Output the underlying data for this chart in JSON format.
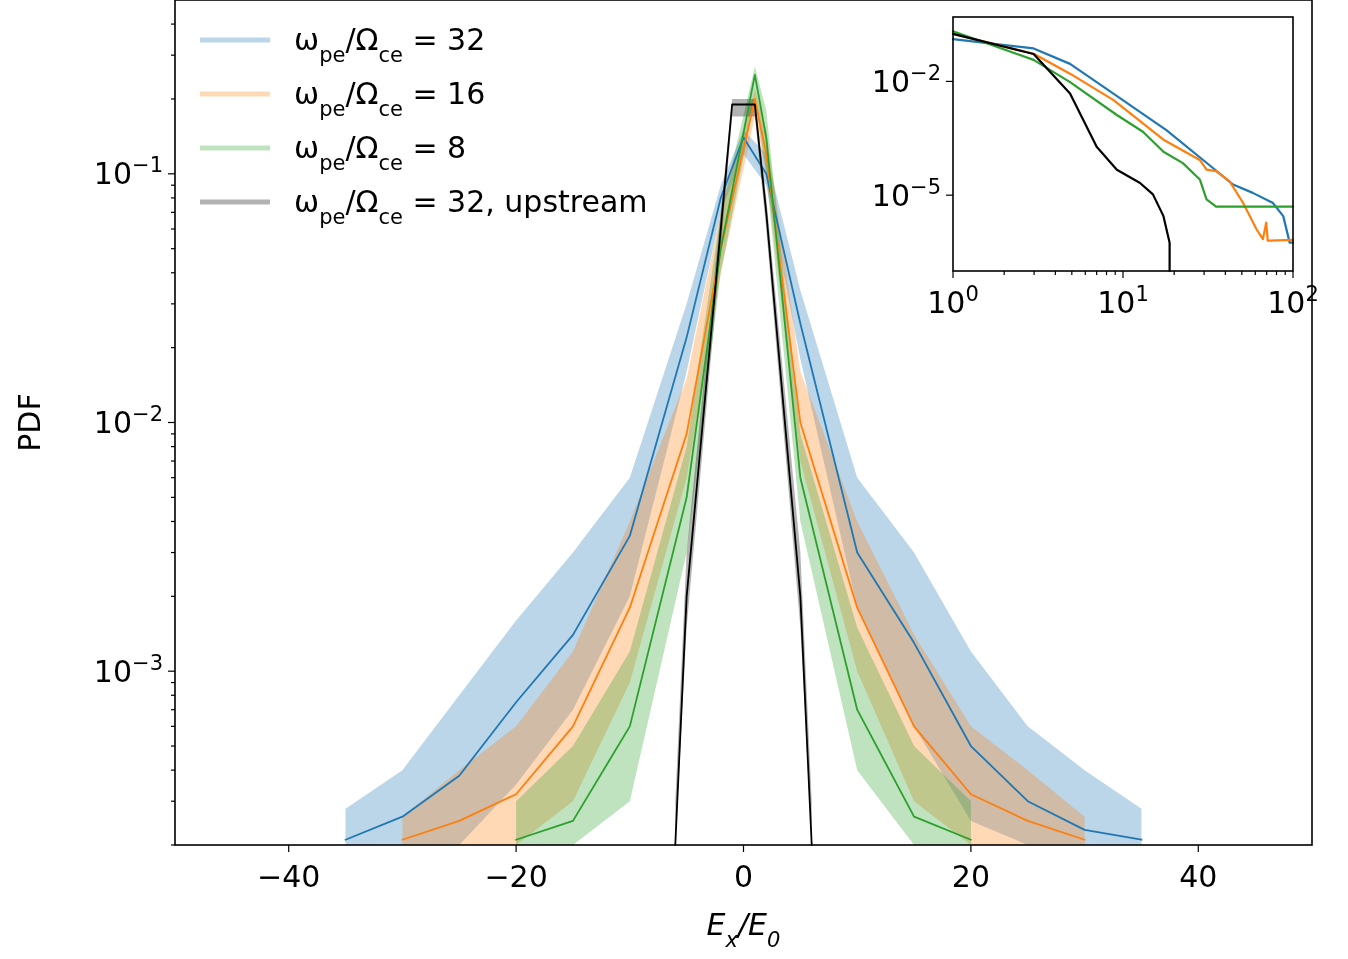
{
  "chart_data": [
    {
      "type": "line",
      "xlabel": "E$_{x}$/E$_{0}$",
      "ylabel": "PDF",
      "log": "y",
      "legend": "top left",
      "xlim": [
        -50,
        50
      ],
      "ylim": [
        0.0002,
        0.5
      ],
      "xticks": [
        {
          "value": -40,
          "label": "−40"
        },
        {
          "value": -20,
          "label": "−20"
        },
        {
          "value": 0,
          "label": "0"
        },
        {
          "value": 20,
          "label": "20"
        },
        {
          "value": 40,
          "label": "40"
        }
      ],
      "yticks": [
        {
          "value": 0.0002,
          "label": null
        },
        {
          "value": 0.0003,
          "label": null
        },
        {
          "value": 0.0004,
          "label": null
        },
        {
          "value": 0.0005,
          "label": null
        },
        {
          "value": 0.0006,
          "label": null
        },
        {
          "value": 0.0007,
          "label": null
        },
        {
          "value": 0.0008,
          "label": null
        },
        {
          "value": 0.0009,
          "label": null
        },
        {
          "value": 0.001,
          "label": "10$^{−3}$"
        },
        {
          "value": 0.002,
          "label": null
        },
        {
          "value": 0.003,
          "label": null
        },
        {
          "value": 0.004,
          "label": null
        },
        {
          "value": 0.005,
          "label": null
        },
        {
          "value": 0.006,
          "label": null
        },
        {
          "value": 0.007,
          "label": null
        },
        {
          "value": 0.008,
          "label": null
        },
        {
          "value": 0.009,
          "label": null
        },
        {
          "value": 0.01,
          "label": "10$^{−2}$"
        },
        {
          "value": 0.02,
          "label": null
        },
        {
          "value": 0.03,
          "label": null
        },
        {
          "value": 0.04,
          "label": null
        },
        {
          "value": 0.05,
          "label": null
        },
        {
          "value": 0.06,
          "label": null
        },
        {
          "value": 0.07,
          "label": null
        },
        {
          "value": 0.08,
          "label": null
        },
        {
          "value": 0.09,
          "label": null
        },
        {
          "value": 0.1,
          "label": "10$^{−1}$"
        },
        {
          "value": 0.2,
          "label": null
        },
        {
          "value": 0.3,
          "label": null
        },
        {
          "value": 0.4,
          "label": null
        }
      ],
      "series": [
        {
          "name": "ω$_{pe}$/Ω$_{ce}$ = 32",
          "color": "#1f77b4",
          "x": [
            -35,
            -30,
            -25,
            -20,
            -15,
            -10,
            -5,
            -2,
            0,
            2,
            5,
            10,
            15,
            20,
            25,
            30,
            35
          ],
          "values": [
            0.00021,
            0.00026,
            0.00038,
            0.00075,
            0.0014,
            0.0035,
            0.022,
            0.08,
            0.14,
            0.1,
            0.025,
            0.003,
            0.0013,
            0.0005,
            0.0003,
            0.00023,
            0.00021
          ],
          "lower": [
            0.0002,
            0.0002,
            0.0002,
            0.00035,
            0.0007,
            0.002,
            0.016,
            0.07,
            0.12,
            0.09,
            0.018,
            0.0018,
            0.0006,
            0.00025,
            0.0002,
            0.0002,
            0.0002
          ],
          "upper": [
            0.00028,
            0.0004,
            0.0008,
            0.0016,
            0.003,
            0.006,
            0.03,
            0.09,
            0.15,
            0.12,
            0.034,
            0.006,
            0.003,
            0.0012,
            0.0006,
            0.0004,
            0.00028
          ]
        },
        {
          "name": "ω$_{pe}$/Ω$_{ce}$ = 16",
          "color": "#ff7f0e",
          "x": [
            -30,
            -25,
            -20,
            -15,
            -10,
            -5,
            -2,
            1,
            2,
            5,
            10,
            15,
            20,
            25,
            30
          ],
          "values": [
            0.00021,
            0.00025,
            0.00032,
            0.0006,
            0.0018,
            0.009,
            0.05,
            0.2,
            0.12,
            0.01,
            0.0018,
            0.0006,
            0.00032,
            0.00025,
            0.00021
          ],
          "lower": [
            0.0002,
            0.0002,
            0.0002,
            0.0003,
            0.0009,
            0.006,
            0.04,
            0.17,
            0.1,
            0.007,
            0.001,
            0.0003,
            0.0002,
            0.0002,
            0.0002
          ],
          "upper": [
            0.00026,
            0.0004,
            0.0006,
            0.0012,
            0.004,
            0.015,
            0.07,
            0.22,
            0.15,
            0.016,
            0.004,
            0.0014,
            0.0006,
            0.0004,
            0.00026
          ]
        },
        {
          "name": "ω$_{pe}$/Ω$_{ce}$ = 8",
          "color": "#2ca02c",
          "x": [
            -20,
            -15,
            -10,
            -5,
            -2,
            1,
            2,
            5,
            10,
            15,
            20
          ],
          "values": [
            0.00021,
            0.00025,
            0.0006,
            0.005,
            0.05,
            0.25,
            0.14,
            0.006,
            0.0007,
            0.00026,
            0.00021
          ],
          "lower": [
            0.0002,
            0.0002,
            0.0003,
            0.003,
            0.04,
            0.2,
            0.1,
            0.004,
            0.0004,
            0.0002,
            0.0002
          ],
          "upper": [
            0.0003,
            0.0005,
            0.0012,
            0.008,
            0.07,
            0.27,
            0.18,
            0.009,
            0.0015,
            0.0005,
            0.0003
          ]
        },
        {
          "name": "ω$_{pe}$/Ω$_{ce}$ = 32, upstream",
          "color": "#000000",
          "x": [
            -6,
            -5,
            -2,
            -1,
            1,
            2,
            5,
            6
          ],
          "values": [
            0.0002,
            0.002,
            0.06,
            0.19,
            0.19,
            0.07,
            0.002,
            0.0002
          ],
          "lower": [
            0.0002,
            0.0015,
            0.05,
            0.17,
            0.17,
            0.06,
            0.0015,
            0.0002
          ],
          "upper": [
            0.0003,
            0.003,
            0.07,
            0.2,
            0.2,
            0.08,
            0.003,
            0.0003
          ]
        }
      ]
    },
    {
      "type": "line",
      "log": "xy",
      "xlim": [
        1,
        100
      ],
      "ylim": [
        1e-07,
        0.5
      ],
      "xticks": [
        {
          "value": 1,
          "label": "10$^{0}$"
        },
        {
          "value": 2,
          "label": null
        },
        {
          "value": 3,
          "label": null
        },
        {
          "value": 4,
          "label": null
        },
        {
          "value": 5,
          "label": null
        },
        {
          "value": 6,
          "label": null
        },
        {
          "value": 7,
          "label": null
        },
        {
          "value": 8,
          "label": null
        },
        {
          "value": 9,
          "label": null
        },
        {
          "value": 10,
          "label": "10$^{1}$"
        },
        {
          "value": 20,
          "label": null
        },
        {
          "value": 30,
          "label": null
        },
        {
          "value": 40,
          "label": null
        },
        {
          "value": 50,
          "label": null
        },
        {
          "value": 60,
          "label": null
        },
        {
          "value": 70,
          "label": null
        },
        {
          "value": 80,
          "label": null
        },
        {
          "value": 90,
          "label": null
        },
        {
          "value": 100,
          "label": "10$^{2}$"
        }
      ],
      "yticks": [
        {
          "value": 0.01,
          "label": "10$^{−2}$"
        },
        {
          "value": 1e-05,
          "label": "10$^{−5}$"
        }
      ],
      "series": [
        {
          "color": "#1f77b4",
          "x": [
            1,
            2.98,
            4.88,
            7,
            18,
            33.8,
            44.4,
            58,
            76,
            87.6,
            95.6,
            100
          ],
          "values": [
            0.13,
            0.074,
            0.029,
            0.0096,
            0.00052,
            5.2e-05,
            1.9e-05,
            1.15e-05,
            6.3e-06,
            2.8e-06,
            5.6e-07,
            5.6e-07
          ]
        },
        {
          "color": "#ff7f0e",
          "x": [
            1,
            3,
            4.88,
            8.8,
            17.3,
            28.3,
            31,
            35.3,
            42.4,
            50.8,
            61,
            66.5,
            69.6,
            71,
            100
          ],
          "values": [
            0.18,
            0.053,
            0.016,
            0.0032,
            0.00029,
            8.5e-05,
            4.7e-05,
            4.3e-05,
            2.3e-05,
            6.3e-06,
            1.26e-06,
            6.9e-07,
            1.9e-06,
            6.3e-07,
            6.6e-07
          ]
        },
        {
          "color": "#2ca02c",
          "x": [
            1,
            2.98,
            4.88,
            9.2,
            13.1,
            17.3,
            22.5,
            28.3,
            31,
            35.3,
            100
          ],
          "values": [
            0.21,
            0.037,
            0.0096,
            0.0013,
            0.00047,
            0.00014,
            7e-05,
            2.6e-05,
            7.7e-06,
            5e-06,
            5e-06
          ]
        },
        {
          "color": "#000000",
          "x": [
            1,
            2.98,
            4.88,
            7,
            9.2,
            12.6,
            15,
            17.3,
            18.8,
            18.8
          ],
          "values": [
            0.18,
            0.053,
            0.0048,
            0.00019,
            4.7e-05,
            2.1e-05,
            1.05e-05,
            2.8e-06,
            5.6e-07,
            1e-07
          ]
        }
      ]
    }
  ]
}
